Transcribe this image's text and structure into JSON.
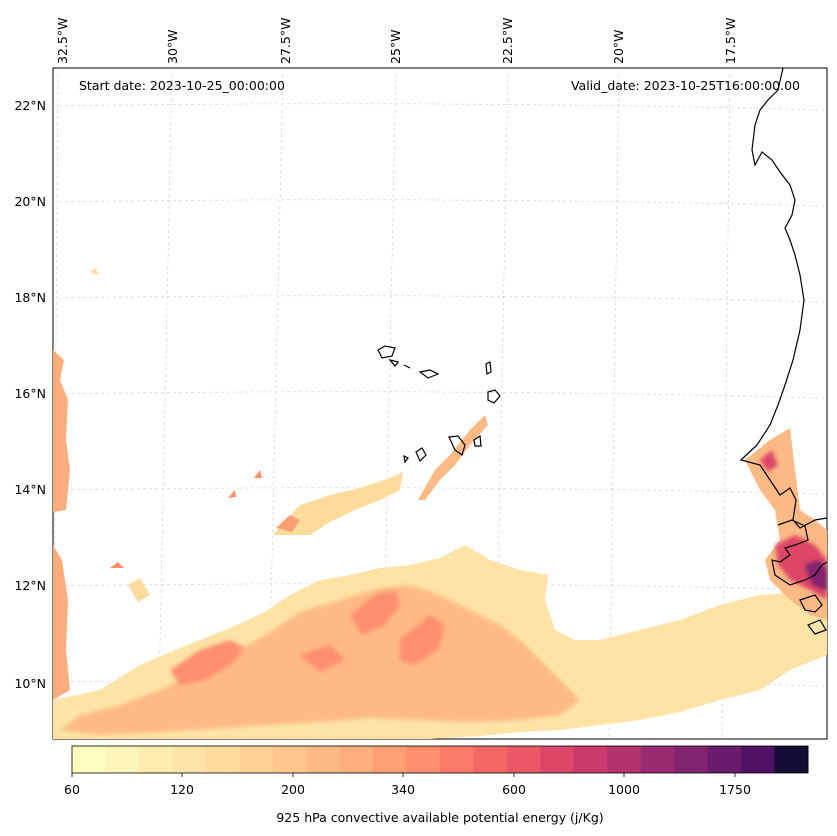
{
  "map": {
    "start_date": "Start date: 2023-10-25_00:00:00",
    "valid_date": "Valid_date: 2023-10-25T16:00:00.00",
    "lon_labels": [
      "32.5°W",
      "30°W",
      "27.5°W",
      "25°W",
      "22.5°W",
      "20°W",
      "17.5°W"
    ],
    "lat_labels": [
      "22°N",
      "20°N",
      "18°N",
      "16°N",
      "14°N",
      "12°N",
      "10°N"
    ]
  },
  "colorbar": {
    "label": "925 hPa convective available potential energy (j/Kg)",
    "tick_labels": [
      "60",
      "120",
      "200",
      "340",
      "600",
      "1000",
      "1750"
    ],
    "colors": [
      "#fcfdbf",
      "#fcf5b7",
      "#fcedae",
      "#fde4a6",
      "#fddb9d",
      "#fed195",
      "#fec68c",
      "#feba84",
      "#fead7c",
      "#fe9e74",
      "#fd8e6e",
      "#f97b69",
      "#f36866",
      "#ea5766",
      "#dc4768",
      "#c93b6c",
      "#b3336f",
      "#9b2b70",
      "#82246f",
      "#6a1c6c",
      "#4f1264",
      "#140e36"
    ]
  },
  "legend_colors": {
    "coast": "#000000",
    "grid": "#cccccc"
  }
}
